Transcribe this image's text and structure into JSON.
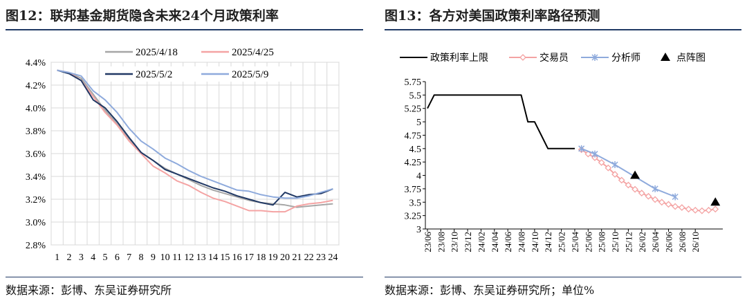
{
  "left": {
    "title": "图12：联邦基金期货隐含未来24个月政策利率",
    "source": "数据来源：彭博、东吴证券研究所",
    "chart_data": {
      "type": "line",
      "x": [
        1,
        2,
        3,
        4,
        5,
        6,
        7,
        8,
        9,
        10,
        11,
        12,
        13,
        14,
        15,
        16,
        17,
        18,
        19,
        20,
        21,
        22,
        23,
        24
      ],
      "x_tick_labels": [
        "1",
        "2",
        "3",
        "4",
        "5",
        "6",
        "7",
        "8",
        "9",
        "10",
        "11",
        "12",
        "13",
        "14",
        "15",
        "16",
        "17",
        "18",
        "19",
        "20",
        "21",
        "22",
        "23",
        "24"
      ],
      "ylim": [
        2.8,
        4.4
      ],
      "y_ticks": [
        2.8,
        3.0,
        3.2,
        3.4,
        3.6,
        3.8,
        4.0,
        4.2,
        4.4
      ],
      "y_tick_labels": [
        "2.8%",
        "3.0%",
        "3.2%",
        "3.4%",
        "3.6%",
        "3.8%",
        "4.0%",
        "4.2%",
        "4.4%"
      ],
      "grid": true,
      "legend_position": "top",
      "series": [
        {
          "name": "2025/4/18",
          "color": "#a6a6a6",
          "values": [
            4.33,
            4.31,
            4.26,
            4.12,
            3.98,
            3.86,
            3.73,
            3.61,
            3.54,
            3.47,
            3.42,
            3.37,
            3.32,
            3.28,
            3.25,
            3.22,
            3.19,
            3.17,
            3.16,
            3.15,
            3.13,
            3.14,
            3.15,
            3.16
          ]
        },
        {
          "name": "2025/4/25",
          "color": "#f4a3a3",
          "values": [
            4.33,
            4.31,
            4.24,
            4.1,
            3.96,
            3.85,
            3.71,
            3.6,
            3.49,
            3.43,
            3.36,
            3.32,
            3.26,
            3.21,
            3.18,
            3.14,
            3.1,
            3.1,
            3.09,
            3.09,
            3.14,
            3.16,
            3.17,
            3.19
          ]
        },
        {
          "name": "2025/5/2",
          "color": "#203864",
          "values": [
            4.33,
            4.3,
            4.24,
            4.07,
            4.0,
            3.88,
            3.74,
            3.61,
            3.54,
            3.46,
            3.42,
            3.38,
            3.34,
            3.3,
            3.27,
            3.23,
            3.2,
            3.17,
            3.15,
            3.26,
            3.22,
            3.24,
            3.25,
            3.29
          ]
        },
        {
          "name": "2025/5/9",
          "color": "#8eaadc",
          "values": [
            4.33,
            4.31,
            4.28,
            4.15,
            4.07,
            3.96,
            3.82,
            3.71,
            3.64,
            3.56,
            3.51,
            3.45,
            3.4,
            3.36,
            3.32,
            3.28,
            3.27,
            3.24,
            3.22,
            3.21,
            3.21,
            3.23,
            3.26,
            3.29
          ]
        }
      ]
    }
  },
  "right": {
    "title": "图13：各方对美国政策利率路径预测",
    "source": "数据来源：彭博、东吴证券研究所；单位%",
    "chart_data": {
      "type": "line",
      "x_tick_labels": [
        "23/06",
        "23/08",
        "23/10",
        "23/12",
        "24/02",
        "24/04",
        "24/06",
        "24/08",
        "24/10",
        "24/12",
        "25/02",
        "25/04",
        "25/06",
        "25/08",
        "25/10",
        "25/12",
        "26/02",
        "26/04",
        "26/06",
        "26/08",
        "26/10"
      ],
      "x_tick_months": [
        0,
        2,
        4,
        6,
        8,
        10,
        12,
        14,
        16,
        18,
        20,
        22,
        24,
        26,
        28,
        30,
        32,
        34,
        36,
        38,
        40
      ],
      "ylim": [
        3.0,
        5.75
      ],
      "y_ticks": [
        3.0,
        3.25,
        3.5,
        3.75,
        4.0,
        4.25,
        4.5,
        4.75,
        5.0,
        5.25,
        5.5,
        5.75
      ],
      "y_tick_labels": [
        "3",
        "3.25",
        "3.5",
        "3.75",
        "4",
        "4.25",
        "4.5",
        "4.75",
        "5",
        "5.25",
        "5.5",
        "5.75"
      ],
      "grid": false,
      "legend_position": "top",
      "series": [
        {
          "name": "政策利率上限",
          "color": "#000000",
          "marker": "none",
          "points": [
            [
              0,
              5.25
            ],
            [
              1,
              5.5
            ],
            [
              14,
              5.5
            ],
            [
              15,
              5.0
            ],
            [
              16,
              5.0
            ],
            [
              17,
              4.75
            ],
            [
              18,
              4.5
            ],
            [
              22,
              4.5
            ]
          ]
        },
        {
          "name": "交易员",
          "color": "#f4a3a3",
          "marker": "diamond",
          "points": [
            [
              23,
              4.48
            ],
            [
              24,
              4.4
            ],
            [
              25,
              4.33
            ],
            [
              26,
              4.24
            ],
            [
              27,
              4.14
            ],
            [
              28,
              4.02
            ],
            [
              29,
              3.91
            ],
            [
              30,
              3.82
            ],
            [
              31,
              3.74
            ],
            [
              32,
              3.67
            ],
            [
              33,
              3.61
            ],
            [
              34,
              3.55
            ],
            [
              35,
              3.5
            ],
            [
              36,
              3.46
            ],
            [
              37,
              3.42
            ],
            [
              38,
              3.4
            ],
            [
              39,
              3.37
            ],
            [
              40,
              3.35
            ],
            [
              41,
              3.34
            ],
            [
              42,
              3.35
            ],
            [
              43,
              3.37
            ]
          ]
        },
        {
          "name": "分析师",
          "color": "#8eaadc",
          "marker": "x",
          "points": [
            [
              23,
              4.5
            ],
            [
              25,
              4.4
            ],
            [
              28,
              4.2
            ],
            [
              34,
              3.75
            ],
            [
              37,
              3.6
            ]
          ]
        },
        {
          "name": "点阵图",
          "color": "#000000",
          "marker": "triangle",
          "points": [
            [
              31,
              4.0
            ],
            [
              43,
              3.5
            ]
          ]
        }
      ]
    }
  }
}
